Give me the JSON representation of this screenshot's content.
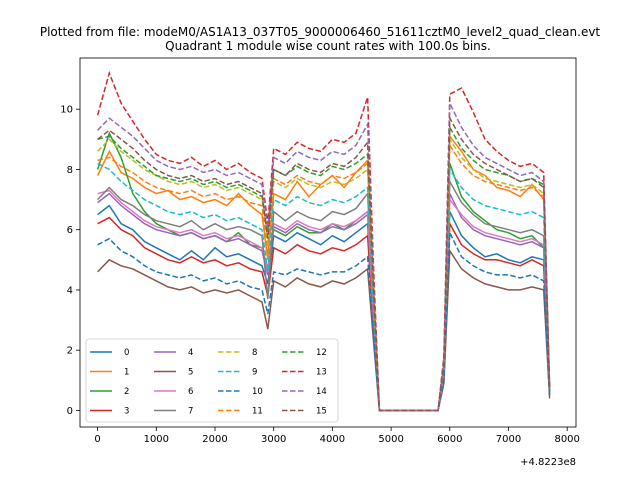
{
  "figure": {
    "suptitle": "Plotted from file: modeM0/AS1A13_037T05_9000006460_51611cztM0_level2_quad_clean.evt",
    "offset_label": "+4.8223e8"
  },
  "chart_data": {
    "type": "line",
    "title": "Quadrant 1 module wise count rates with 100.0s bins.",
    "xlabel": "",
    "ylabel": "",
    "xlim": [
      -300,
      8150
    ],
    "ylim": [
      -0.55,
      11.7
    ],
    "xticks": [
      0,
      1000,
      2000,
      3000,
      4000,
      5000,
      6000,
      7000,
      8000
    ],
    "yticks": [
      0,
      2,
      4,
      6,
      8,
      10
    ],
    "grid": false,
    "legend": {
      "location": "lower-left",
      "ncol": 4
    },
    "x": [
      0,
      200,
      400,
      600,
      800,
      1000,
      1200,
      1400,
      1600,
      1800,
      2000,
      2200,
      2400,
      2600,
      2800,
      2900,
      3000,
      3200,
      3400,
      3600,
      3800,
      4000,
      4200,
      4400,
      4600,
      4700,
      4800,
      4900,
      5800,
      5900,
      6000,
      6200,
      6400,
      6600,
      6800,
      7000,
      7200,
      7400,
      7600,
      7700
    ],
    "series": [
      {
        "name": "0",
        "color": "#1f77b4",
        "dash": "solid",
        "values": [
          6.5,
          6.8,
          6.2,
          6.0,
          5.6,
          5.4,
          5.2,
          5.0,
          5.3,
          5.0,
          5.4,
          5.1,
          5.2,
          5.0,
          4.8,
          4.2,
          5.8,
          5.6,
          5.9,
          5.7,
          5.5,
          5.8,
          5.6,
          5.9,
          6.2,
          3.0,
          0.0,
          0.0,
          0.0,
          1.2,
          6.6,
          5.8,
          5.4,
          5.1,
          5.2,
          5.0,
          4.9,
          5.1,
          5.0,
          0.6
        ]
      },
      {
        "name": "1",
        "color": "#ff7f0e",
        "dash": "solid",
        "values": [
          7.8,
          8.6,
          7.9,
          7.7,
          7.4,
          7.2,
          7.3,
          7.0,
          7.1,
          6.9,
          7.0,
          6.8,
          7.2,
          6.8,
          6.5,
          5.0,
          7.2,
          7.0,
          7.6,
          7.1,
          7.5,
          7.8,
          7.4,
          7.9,
          8.3,
          4.0,
          0.0,
          0.0,
          0.0,
          1.5,
          9.1,
          8.6,
          8.0,
          7.8,
          7.4,
          7.3,
          7.1,
          7.5,
          7.0,
          0.6
        ]
      },
      {
        "name": "2",
        "color": "#2ca02c",
        "dash": "solid",
        "values": [
          8.0,
          9.2,
          8.4,
          7.2,
          6.6,
          6.2,
          6.0,
          5.8,
          5.9,
          5.7,
          5.8,
          5.6,
          5.9,
          5.5,
          5.4,
          4.7,
          6.0,
          5.8,
          6.1,
          5.9,
          5.9,
          6.2,
          6.0,
          6.3,
          6.6,
          3.2,
          0.0,
          0.0,
          0.0,
          1.3,
          8.2,
          7.1,
          6.6,
          6.3,
          6.0,
          5.9,
          5.7,
          5.8,
          5.4,
          0.6
        ]
      },
      {
        "name": "3",
        "color": "#d62728",
        "dash": "solid",
        "values": [
          6.2,
          6.4,
          6.0,
          5.8,
          5.4,
          5.2,
          5.0,
          4.9,
          5.1,
          4.9,
          5.0,
          4.8,
          4.9,
          4.7,
          4.6,
          3.8,
          5.4,
          5.2,
          5.5,
          5.3,
          5.2,
          5.4,
          5.3,
          5.5,
          5.8,
          2.8,
          0.0,
          0.0,
          0.0,
          1.1,
          6.2,
          5.5,
          5.2,
          5.0,
          5.0,
          4.9,
          4.8,
          5.0,
          4.8,
          0.5
        ]
      },
      {
        "name": "4",
        "color": "#9467bd",
        "dash": "solid",
        "values": [
          6.9,
          7.2,
          6.8,
          6.5,
          6.2,
          6.0,
          5.9,
          5.8,
          5.9,
          5.7,
          5.8,
          5.6,
          5.7,
          5.5,
          5.3,
          4.5,
          6.1,
          5.9,
          6.2,
          6.0,
          5.9,
          6.1,
          6.0,
          6.2,
          6.5,
          3.1,
          0.0,
          0.0,
          0.0,
          1.2,
          7.2,
          6.4,
          6.0,
          5.8,
          5.7,
          5.6,
          5.5,
          5.6,
          5.4,
          0.6
        ]
      },
      {
        "name": "5",
        "color": "#8c564b",
        "dash": "solid",
        "values": [
          4.6,
          5.0,
          4.8,
          4.7,
          4.5,
          4.3,
          4.1,
          4.0,
          4.1,
          3.9,
          4.0,
          3.9,
          4.0,
          3.8,
          3.6,
          2.7,
          4.3,
          4.1,
          4.4,
          4.2,
          4.1,
          4.3,
          4.2,
          4.4,
          4.7,
          2.3,
          0.0,
          0.0,
          0.0,
          0.9,
          5.3,
          4.7,
          4.4,
          4.2,
          4.1,
          4.0,
          4.0,
          4.1,
          4.0,
          0.4
        ]
      },
      {
        "name": "6",
        "color": "#e377c2",
        "dash": "solid",
        "values": [
          7.2,
          7.3,
          6.9,
          6.6,
          6.3,
          6.1,
          6.0,
          5.9,
          6.0,
          5.8,
          5.9,
          5.7,
          5.8,
          5.6,
          5.4,
          4.6,
          6.2,
          6.0,
          6.3,
          6.1,
          6.0,
          6.2,
          6.1,
          6.3,
          6.6,
          3.1,
          0.0,
          0.0,
          0.0,
          1.2,
          7.0,
          6.5,
          6.1,
          5.9,
          5.8,
          5.7,
          5.6,
          5.7,
          5.5,
          0.6
        ]
      },
      {
        "name": "7",
        "color": "#7f7f7f",
        "dash": "solid",
        "values": [
          7.0,
          7.4,
          7.0,
          6.8,
          6.5,
          6.3,
          6.2,
          6.1,
          6.3,
          6.0,
          6.2,
          6.0,
          6.1,
          6.0,
          5.8,
          3.7,
          6.6,
          6.3,
          6.6,
          6.4,
          6.3,
          6.6,
          6.5,
          6.7,
          7.2,
          3.4,
          0.0,
          0.0,
          0.0,
          1.3,
          7.6,
          6.9,
          6.5,
          6.2,
          6.1,
          6.0,
          5.9,
          6.0,
          5.8,
          0.6
        ]
      },
      {
        "name": "8",
        "color": "#bcbd22",
        "dash": "dashed",
        "values": [
          8.6,
          9.0,
          8.6,
          8.3,
          8.0,
          7.8,
          7.6,
          7.5,
          7.6,
          7.4,
          7.5,
          7.3,
          7.4,
          7.2,
          7.0,
          5.5,
          7.6,
          7.4,
          7.7,
          7.5,
          7.4,
          7.6,
          7.5,
          7.7,
          8.0,
          3.8,
          0.0,
          0.0,
          0.0,
          1.5,
          9.0,
          8.4,
          8.0,
          7.7,
          7.6,
          7.5,
          7.4,
          7.5,
          7.2,
          0.7
        ]
      },
      {
        "name": "9",
        "color": "#17becf",
        "dash": "dashed",
        "values": [
          8.2,
          8.0,
          7.6,
          7.3,
          7.0,
          6.8,
          6.6,
          6.5,
          6.6,
          6.4,
          6.5,
          6.3,
          6.4,
          6.2,
          6.0,
          4.6,
          7.0,
          6.8,
          7.1,
          6.9,
          6.8,
          7.0,
          6.9,
          7.1,
          7.4,
          3.5,
          0.0,
          0.0,
          0.0,
          1.4,
          8.0,
          7.4,
          7.0,
          6.8,
          6.7,
          6.6,
          6.5,
          6.6,
          6.4,
          0.6
        ]
      },
      {
        "name": "10",
        "color": "#1f77b4",
        "dash": "dashed",
        "values": [
          5.5,
          5.7,
          5.3,
          5.1,
          4.8,
          4.6,
          4.5,
          4.4,
          4.5,
          4.3,
          4.4,
          4.2,
          4.3,
          4.1,
          4.0,
          3.2,
          4.6,
          4.5,
          4.7,
          4.6,
          4.5,
          4.6,
          4.6,
          4.8,
          5.1,
          2.5,
          0.0,
          0.0,
          0.0,
          1.0,
          5.9,
          5.1,
          4.8,
          4.6,
          4.5,
          4.5,
          4.4,
          4.5,
          4.3,
          0.5
        ]
      },
      {
        "name": "11",
        "color": "#ff7f0e",
        "dash": "dashed",
        "values": [
          8.3,
          8.4,
          8.1,
          7.9,
          7.6,
          7.4,
          7.3,
          7.2,
          7.3,
          7.1,
          7.2,
          7.0,
          7.1,
          6.9,
          6.8,
          5.2,
          7.7,
          7.5,
          7.8,
          7.6,
          7.5,
          7.8,
          7.7,
          7.9,
          8.2,
          3.9,
          0.0,
          0.0,
          0.0,
          1.5,
          8.8,
          8.2,
          7.8,
          7.6,
          7.5,
          7.4,
          7.3,
          7.4,
          7.1,
          0.7
        ]
      },
      {
        "name": "12",
        "color": "#2ca02c",
        "dash": "dashed",
        "values": [
          9.0,
          9.1,
          8.7,
          8.4,
          8.1,
          7.8,
          7.7,
          7.6,
          7.7,
          7.5,
          7.6,
          7.4,
          7.5,
          7.3,
          7.1,
          5.8,
          8.0,
          7.8,
          8.1,
          7.9,
          7.8,
          8.1,
          8.0,
          8.2,
          8.5,
          4.0,
          0.0,
          0.0,
          0.0,
          1.6,
          9.4,
          8.7,
          8.3,
          8.0,
          7.9,
          7.8,
          7.6,
          7.7,
          7.5,
          0.7
        ]
      },
      {
        "name": "13",
        "color": "#d62728",
        "dash": "dashed",
        "values": [
          9.8,
          11.2,
          10.2,
          9.6,
          9.0,
          8.5,
          8.3,
          8.2,
          8.4,
          8.1,
          8.3,
          8.0,
          8.2,
          7.9,
          7.7,
          6.2,
          8.7,
          8.5,
          8.9,
          8.7,
          8.6,
          9.0,
          8.9,
          9.2,
          10.4,
          4.8,
          0.0,
          0.0,
          0.0,
          1.8,
          10.5,
          10.7,
          9.9,
          9.0,
          8.6,
          8.3,
          8.1,
          8.2,
          7.9,
          0.8
        ]
      },
      {
        "name": "14",
        "color": "#9467bd",
        "dash": "dashed",
        "values": [
          9.3,
          9.7,
          9.4,
          9.1,
          8.7,
          8.3,
          8.1,
          8.0,
          8.1,
          7.9,
          8.0,
          7.8,
          7.9,
          7.7,
          7.5,
          6.0,
          8.4,
          8.2,
          8.6,
          8.4,
          8.3,
          8.6,
          8.5,
          8.8,
          9.5,
          4.5,
          0.0,
          0.0,
          0.0,
          1.7,
          10.2,
          9.4,
          8.8,
          8.4,
          8.2,
          8.0,
          7.8,
          7.9,
          7.6,
          0.7
        ]
      },
      {
        "name": "15",
        "color": "#8c564b",
        "dash": "dashed",
        "values": [
          9.0,
          9.3,
          9.0,
          8.7,
          8.3,
          8.0,
          7.8,
          7.7,
          7.8,
          7.6,
          7.7,
          7.5,
          7.6,
          7.4,
          7.2,
          5.7,
          8.0,
          7.8,
          8.2,
          8.0,
          7.9,
          8.2,
          8.1,
          8.4,
          8.9,
          4.2,
          0.0,
          0.0,
          0.0,
          1.6,
          9.7,
          9.0,
          8.5,
          8.2,
          8.0,
          7.8,
          7.6,
          7.7,
          7.4,
          0.7
        ]
      }
    ]
  }
}
